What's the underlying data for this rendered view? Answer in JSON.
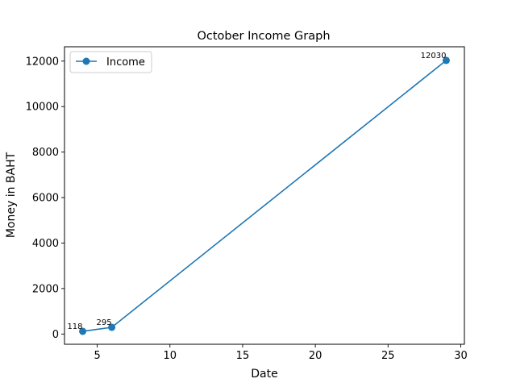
{
  "chart_data": {
    "type": "line",
    "title": "October Income Graph",
    "xlabel": "Date",
    "ylabel": "Money in BAHT",
    "xlim": [
      2.75,
      30.25
    ],
    "ylim": [
      -450,
      12630
    ],
    "xticks": [
      5,
      10,
      15,
      20,
      25,
      30
    ],
    "yticks": [
      0,
      2000,
      4000,
      6000,
      8000,
      10000,
      12000
    ],
    "grid": false,
    "legend": "upper-left",
    "series": [
      {
        "name": "Income",
        "color": "#1f77b4",
        "marker": "circle",
        "x": [
          4,
          6,
          29
        ],
        "y": [
          118,
          295,
          12030
        ],
        "labels": [
          "118",
          "295",
          "12030"
        ]
      }
    ]
  }
}
